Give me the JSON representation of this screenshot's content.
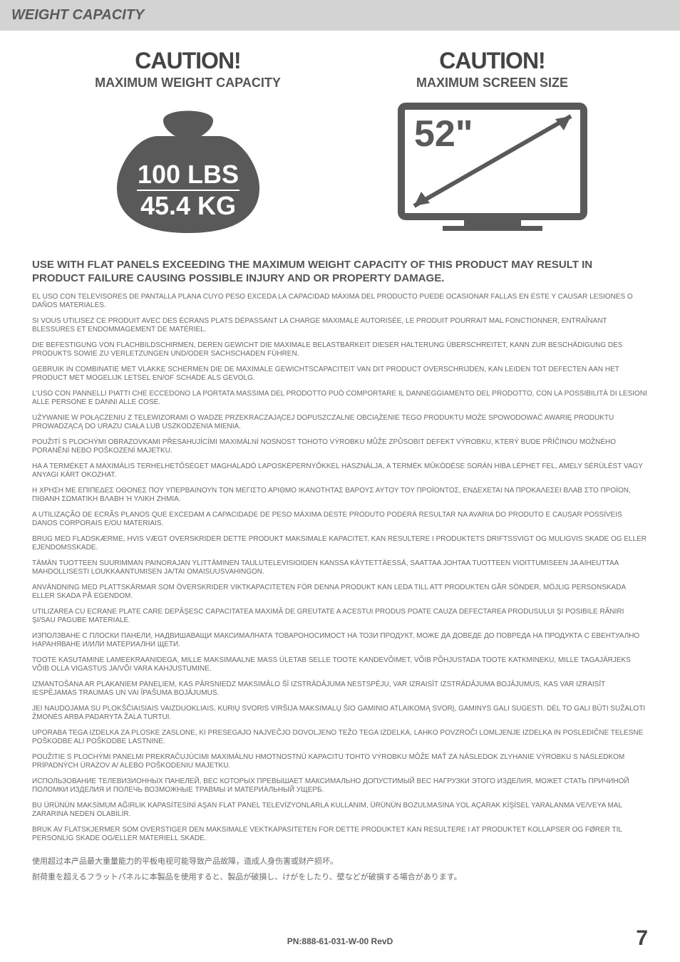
{
  "header": {
    "title": "WEIGHT CAPACITY"
  },
  "caution_left": {
    "title": "CAUTION!",
    "subtitle": "MAXIMUM WEIGHT CAPACITY",
    "line1": "100 LBS",
    "line2": "45.4 KG"
  },
  "caution_right": {
    "title": "CAUTION!",
    "subtitle": "MAXIMUM SCREEN SIZE",
    "value": "52\""
  },
  "warning_head": "USE WITH FLAT PANELS EXCEEDING THE MAXIMUM WEIGHT CAPACITY OF THIS PRODUCT MAY RESULT IN PRODUCT FAILURE CAUSING POSSIBLE INJURY AND OR PROPERTY DAMAGE.",
  "paragraphs": [
    "EL USO CON TELEVISORES DE PANTALLA PLANA CUYO PESO EXCEDA LA CAPACIDAD MÁXIMA DEL PRODUCTO PUEDE OCASIONAR FALLAS EN ÉSTE Y CAUSAR LESIONES O DAÑOS MATERIALES.",
    "SI VOUS UTILISEZ CE PRODUIT AVEC DES ÉCRANS PLATS DÉPASSANT LA CHARGE MAXIMALE AUTORISÉE, LE PRODUIT POURRAIT MAL FONCTIONNER, ENTRAÎNANT BLESSURES ET ENDOMMAGEMENT DE MATÉRIEL.",
    "DIE BEFESTIGUNG VON FLACHBILDSCHIRMEN, DEREN GEWICHT DIE MAXIMALE BELASTBARKEIT DIESER HALTERUNG ÜBERSCHREITET, KANN ZUR BESCHÄDIGUNG DES PRODUKTS SOWIE ZU VERLETZUNGEN UND/ODER SACHSCHADEN FÜHREN.",
    "GEBRUIK IN COMBINATIE MET VLAKKE SCHERMEN DIE DE MAXIMALE GEWICHTSCAPACITEIT VAN DIT PRODUCT OVERSCHRIJDEN, KAN LEIDEN TOT DEFECTEN AAN HET PRODUCT MET MOGELIJK LETSEL EN/OF SCHADE ALS GEVOLG.",
    "L'USO CON PANNELLI PIATTI CHE ECCEDONO LA PORTATA MASSIMA DEL PRODOTTO PUÒ COMPORTARE IL DANNEGGIAMENTO DEL PRODOTTO, CON LA POSSIBILITÀ DI LESIONI ALLE PERSONE E DANNI ALLE COSE.",
    "UŻYWANIE W POŁĄCZENIU Z TELEWIZORAMI O WADZE PRZEKRACZAJĄCEJ DOPUSZCZALNE OBCIĄŻENIE TEGO PRODUKTU MOŻE SPOWODOWAĆ AWARIĘ PRODUKTU PROWADZĄCĄ DO URAZU CIAŁA LUB USZKODZENIA MIENIA.",
    "POUŽITÍ S PLOCHÝMI OBRAZOVKAMI PŘESAHUJÍCÍMI MAXIMÁLNÍ NOSNOST TOHOTO VÝROBKU MŮŽE ZPŮSOBIT DEFEKT VÝROBKU, KTERÝ BUDE PŘÍČINOU MOŽNÉHO PORANĚNÍ NEBO POŠKOZENÍ MAJETKU.",
    "HA A TERMÉKET A MAXIMÁLIS TERHELHETŐSÉGET MAGHALADÓ LAPOSKÉPERNYŐKKEL HASZNÁLJA, A TERMÉK MŰKÖDÉSE SORÁN HIBA LÉPHET FEL, AMELY SÉRÜLÉST VAGY ANYAGI KÁRT OKOZHAT.",
    "Η ΧΡΗΣΗ ΜΕ ΕΠΙΠΕΔΕΣ ΟΘΟΝΕΣ ΠΟΥ ΥΠΕΡΒΑΙΝΟΥΝ ΤΟΝ ΜΕΓΙΣΤΟ ΑΡΙΘΜΟ ΙΚΑΝΟΤΗΤΑΣ ΒΑΡΟΥΣ ΑΥΤΟΥ ΤΟΥ ΠΡΟΪΟΝΤΟΣ, ΕΝΔΕΧΕΤΑΙ ΝΑ ΠΡΟΚΑΛΕΣΕΙ ΒΛΑΒ ΣΤΟ ΠΡΟΪΟΝ, ΠΙΘΑΝΗ ΣΩΜΑΤΙΚΗ ΒΛΑΒΗ Ή ΥΛΙΚΗ ΖΗΜΙΑ.",
    "A UTILIZAÇÃO DE ECRÃS PLANOS QUE EXCEDAM A CAPACIDADE DE PESO MÁXIMA DESTE PRODUTO PODERÁ RESULTAR NA AVARIA DO PRODUTO E CAUSAR POSSÍVEIS DANOS CORPORAIS E/OU MATERIAIS.",
    "BRUG MED FLADSKÆRME, HVIS VÆGT OVERSKRIDER DETTE PRODUKT MAKSIMALE KAPACITET, KAN RESULTERE I PRODUKTETS DRIFTSSVIGT OG MULIGVIS SKADE OG ELLER EJENDOMSSKADE.",
    "TÄMÄN TUOTTEEN SUURIMMAN PAINORAJAN YLITTÄMINEN TAULUTELEVISIOIDEN KANSSA KÄYTETTÄESSÄ, SAATTAA JOHTAA TUOTTEEN VIOITTUMISEEN JA AIHEUTTAA MAHDOLLISESTI LOUKKAANTUMISEN JA/TAI OMAISUUSVAHINGON.",
    "ANVÄNDNING MED PLATTSKÄRMAR SOM ÖVERSKRIDER VIKTKAPACITETEN FÖR DENNA PRODUKT KAN LEDA TILL ATT PRODUKTEN GÅR SÖNDER, MÖJLIG PERSONSKADA ELLER SKADA PÅ EGENDOM.",
    "UTILIZAREA CU ECRANE PLATE CARE DEPĂŞESC CAPACITATEA MAXIMĂ DE GREUTATE A ACESTUI PRODUS POATE CAUZA DEFECTAREA PRODUSULUI ŞI POSIBILE RĂNIRI ŞI/SAU PAGUBE MATERIALE.",
    "ИЗПОЛЗВАНЕ С ПЛОСКИ ПАНЕЛИ, НАДВИШАВАЩИ МАКСИМАЛНАТА ТОВАРОНОСИМОСТ НА ТОЗИ ПРОДУКТ, МОЖЕ ДА ДОВЕДЕ ДО ПОВРЕДА НА ПРОДУКТА С ЕВЕНТУАЛНО НАРАНЯВАНЕ И/ИЛИ МАТЕРИАЛНИ ЩЕТИ.",
    "TOOTE KASUTAMINE LAMEEKRAANIDEGA, MILLE MAKSIMAALNE MASS ÜLETAB SELLE TOOTE KANDEVÕIMET, VÕIB PÕHJUSTADA TOOTE KATKMINEKU, MILLE TAGAJÄRJEKS VÕIB OLLA VIGASTUS JA/VÕI VARA KAHJUSTUMINE.",
    "IZMANTOŠANA AR PLAKANIEM PANEĻIEM, KAS PĀRSNIEDZ MAKSIMĀLO ŠĪ IZSTRĀDĀJUMA NESTSPĒJU, VAR IZRAISĪT IZSTRĀDĀJUMA BOJĀJUMUS, KAS VAR IZRAISĪT IESPĒJAMAS TRAUMAS UN VAI ĪPAŠUMA BOJĀJUMUS.",
    "JEI NAUDOJAMA SU PLOKŠČIAISIAIS VAIZDUOKLIAIS, KURIŲ SVORIS VIRŠIJA MAKSIMALŲ ŠIO GAMINIO ATLAIKOMĄ SVORĮ, GAMINYS GALI SUGESTI. DĖL TO GALI BŪTI SUŽALOTI ŽMONĖS ARBA PADARYTA ŽALA TURTUI.",
    "UPORABA TEGA IZDELKA ZA PLOSKE ZASLONE, KI PRESEGAJO NAJVEČJO DOVOLJENO TEŽO TEGA IZDELKA, LAHKO POVZROČI LOMLJENJE IZDELKA IN POSLEDIČNE TELESNE POŠKODBE ALI POŠKODBE LASTNINE.",
    "POUŽITIE S PLOCHÝMI PANELMI PREKRAČUJÚCIMI MAXIMÁLNU HMOTNOSTNÚ KAPACITU TOHTO VÝROBKU MÔŽE MAŤ ZA NÁSLEDOK ZLYHANIE VÝROBKU S NÁSLEDKOM PRÍPADNÝCH ÚRAZOV A/ ALEBO POŠKODENIU MAJETKU.",
    "ИСПОЛЬЗОВАНИЕ ТЕЛЕВИЗИОННЫХ ПАНЕЛЕЙ, ВЕС КОТОРЫХ ПРЕВЫШАЕТ МАКСИМАЛЬНО ДОПУСТИМЫЙ ВЕС НАГРУЗКИ ЭТОГО ИЗДЕЛИЯ, МОЖЕТ СТАТЬ ПРИЧИНОЙ ПОЛОМКИ ИЗДЕЛИЯ И ПОЛЕЧЬ ВОЗМОЖНЫЕ ТРАВМЫ И МАТЕРИАЛЬНЫЙ УЩЕРБ.",
    "BU ÜRÜNÜN MAKSİMUM AĞIRLIK KAPASİTESİNİ AŞAN FLAT PANEL TELEVİZYONLARLA KULLANIM, ÜRÜNÜN BOZULMASINA YOL AÇARAK KİŞİSEL YARALANMA VE/VEYA MAL ZARARINA NEDEN OLABİLİR.",
    "BRUK AV FLATSKJERMER SOM OVERSTIGER DEN MAKSIMALE VEKTKAPASITETEN FOR DETTE PRODUKTET KAN RESULTERE I AT PRODUKTET KOLLAPSER OG FØRER TIL PERSONLIG SKADE OG/ELLER MATERIELL SKADE."
  ],
  "cjk": [
    "使用超过本产品最大重量能力的平板电视可能导致产品故障，造成人身伤害或财产损坏。",
    "耐荷重を超えるフラットパネルに本製品を使用すると、製品が破損し、けがをしたり、壁などが破損する場合があります。"
  ],
  "footer": {
    "pn": "PN:888-61-031-W-00 RevD",
    "page": "7"
  },
  "colors": {
    "header_bg": "#d3d3d3",
    "text": "#5a5a5a",
    "graphic_fill": "#595959"
  }
}
